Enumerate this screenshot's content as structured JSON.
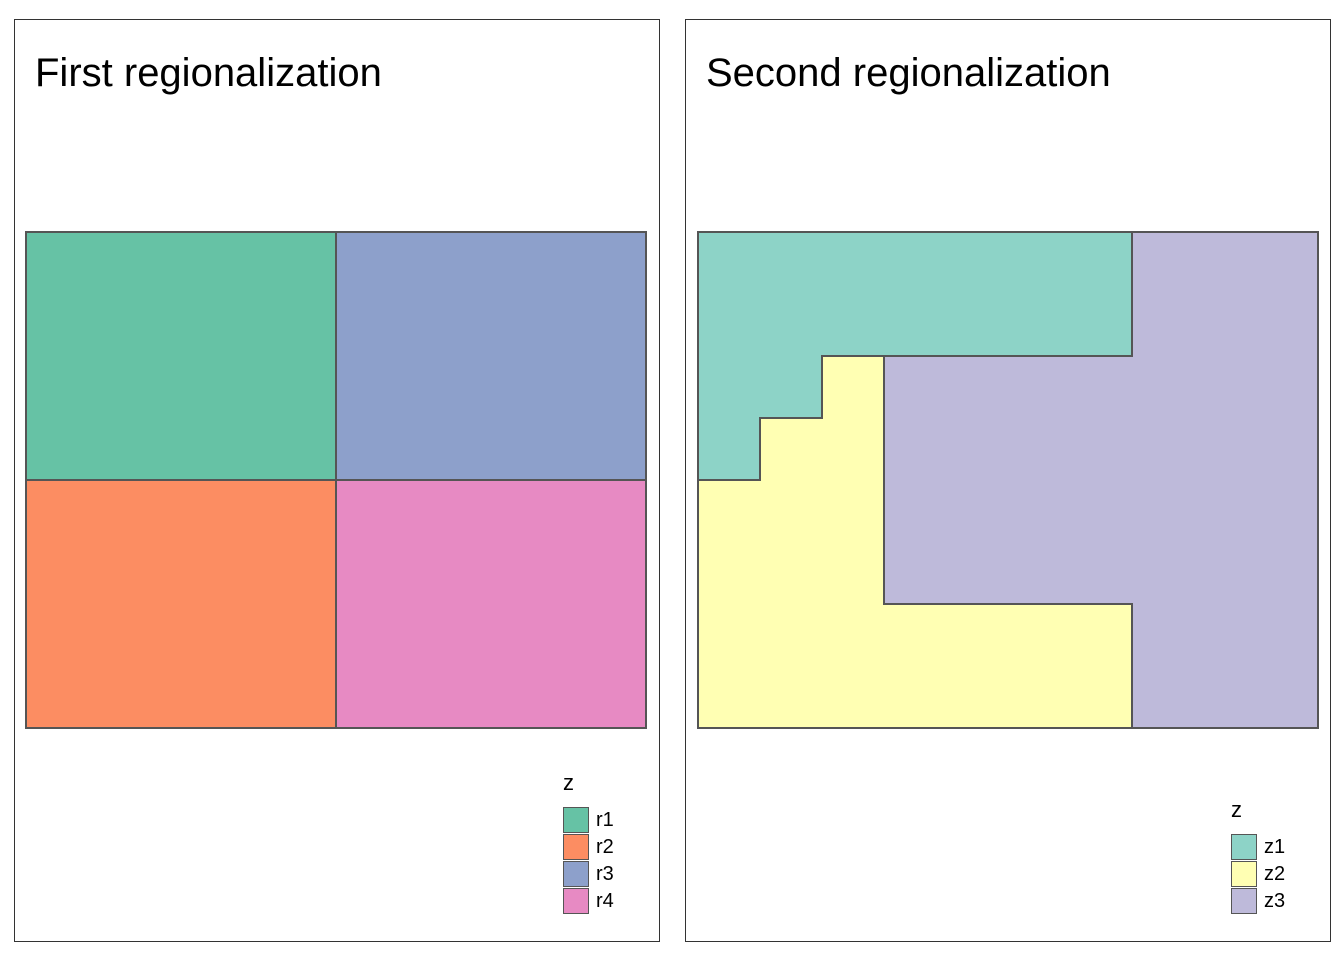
{
  "panels": [
    {
      "title": "First regionalization",
      "legend": {
        "title": "z",
        "items": [
          {
            "label": "r1",
            "color": "#66C2A5"
          },
          {
            "label": "r2",
            "color": "#FC8D62"
          },
          {
            "label": "r3",
            "color": "#8DA0CB"
          },
          {
            "label": "r4",
            "color": "#E78AC3"
          }
        ]
      }
    },
    {
      "title": "Second regionalization",
      "legend": {
        "title": "z",
        "items": [
          {
            "label": "z1",
            "color": "#8DD3C7"
          },
          {
            "label": "z2",
            "color": "#FFFFB3"
          },
          {
            "label": "z3",
            "color": "#BEBADA"
          }
        ]
      }
    }
  ]
}
